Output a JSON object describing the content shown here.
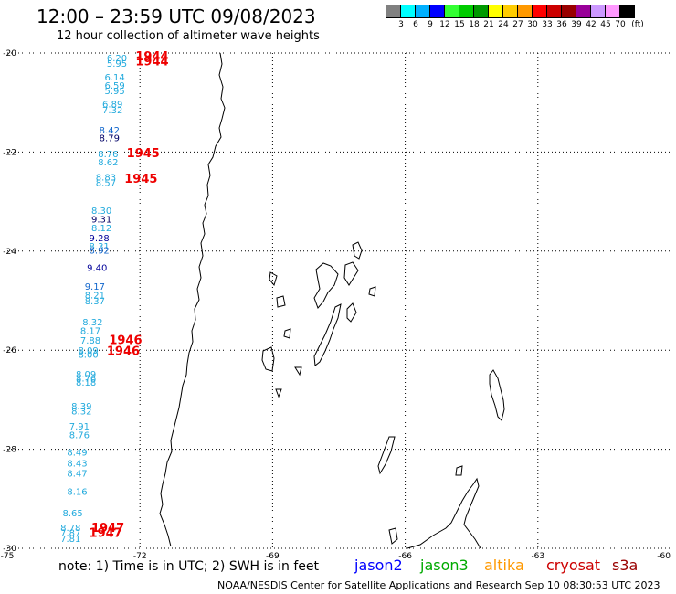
{
  "title": "12:00 – 23:59 UTC 09/08/2023",
  "subtitle": "12 hour collection of altimeter wave heights",
  "legend": {
    "colors": [
      "#808080",
      "#00ffff",
      "#00b0ff",
      "#0000ff",
      "#33ff33",
      "#00cc00",
      "#009900",
      "#ffff00",
      "#ffcc00",
      "#ff9900",
      "#ff0000",
      "#cc0000",
      "#990000",
      "#990099",
      "#cc99ff",
      "#ff99ff",
      "#000000"
    ],
    "labels": [
      "3",
      "6",
      "9",
      "12",
      "15",
      "18",
      "21",
      "24",
      "27",
      "30",
      "33",
      "36",
      "39",
      "42",
      "45",
      "70"
    ],
    "unit": "(ft)"
  },
  "axes": {
    "lat_labels": [
      "-20",
      "-22",
      "-24",
      "-26",
      "-28",
      "-30"
    ],
    "lon_labels": [
      "-75",
      "-72",
      "-69",
      "-66",
      "-63",
      "-60"
    ]
  },
  "observations": [
    {
      "v": "6.20",
      "c": "#22aadd",
      "lat": -20.17,
      "lon": -72.75
    },
    {
      "v": "5.95",
      "c": "#22aadd",
      "lat": -20.28,
      "lon": -72.75
    },
    {
      "v": "6.14",
      "c": "#22aadd",
      "lat": -20.55,
      "lon": -72.8
    },
    {
      "v": "6.59",
      "c": "#22aadd",
      "lat": -20.72,
      "lon": -72.8
    },
    {
      "v": "5.95",
      "c": "#22aadd",
      "lat": -20.83,
      "lon": -72.8
    },
    {
      "v": "6.89",
      "c": "#22aadd",
      "lat": -21.1,
      "lon": -72.85
    },
    {
      "v": "7.32",
      "c": "#22aadd",
      "lat": -21.22,
      "lon": -72.85
    },
    {
      "v": "8.42",
      "c": "#1166cc",
      "lat": -21.62,
      "lon": -72.92
    },
    {
      "v": "8.79",
      "c": "#000066",
      "lat": -21.78,
      "lon": -72.92
    },
    {
      "v": "8.76",
      "c": "#22aadd",
      "lat": -22.1,
      "lon": -72.95
    },
    {
      "v": "8.62",
      "c": "#22aadd",
      "lat": -22.27,
      "lon": -72.95
    },
    {
      "v": "8.83",
      "c": "#22aadd",
      "lat": -22.57,
      "lon": -73.0
    },
    {
      "v": "8.57",
      "c": "#22aadd",
      "lat": -22.68,
      "lon": -73.0
    },
    {
      "v": "8.30",
      "c": "#22aadd",
      "lat": -23.25,
      "lon": -73.1
    },
    {
      "v": "9.31",
      "c": "#000066",
      "lat": -23.42,
      "lon": -73.1
    },
    {
      "v": "8.12",
      "c": "#22aadd",
      "lat": -23.6,
      "lon": -73.1
    },
    {
      "v": "9.28",
      "c": "#000099",
      "lat": -23.8,
      "lon": -73.15
    },
    {
      "v": "8.31",
      "c": "#22aadd",
      "lat": -23.97,
      "lon": -73.15
    },
    {
      "v": "8.92",
      "c": "#1166cc",
      "lat": -24.05,
      "lon": -73.15
    },
    {
      "v": "9.40",
      "c": "#000099",
      "lat": -24.4,
      "lon": -73.2
    },
    {
      "v": "9.17",
      "c": "#1166cc",
      "lat": -24.78,
      "lon": -73.25
    },
    {
      "v": "8.21",
      "c": "#22aadd",
      "lat": -24.95,
      "lon": -73.25
    },
    {
      "v": "8.37",
      "c": "#22aadd",
      "lat": -25.07,
      "lon": -73.25
    },
    {
      "v": "8.32",
      "c": "#22aadd",
      "lat": -25.5,
      "lon": -73.3
    },
    {
      "v": "8.17",
      "c": "#22aadd",
      "lat": -25.67,
      "lon": -73.35
    },
    {
      "v": "7.88",
      "c": "#22aadd",
      "lat": -25.87,
      "lon": -73.35
    },
    {
      "v": "8.09",
      "c": "#22aadd",
      "lat": -26.07,
      "lon": -73.4
    },
    {
      "v": "8.00",
      "c": "#22aadd",
      "lat": -26.15,
      "lon": -73.4
    },
    {
      "v": "8.09",
      "c": "#22aadd",
      "lat": -26.55,
      "lon": -73.45
    },
    {
      "v": "8.76",
      "c": "#22aadd",
      "lat": -26.63,
      "lon": -73.45
    },
    {
      "v": "8.18",
      "c": "#22aadd",
      "lat": -26.72,
      "lon": -73.45
    },
    {
      "v": "8.39",
      "c": "#22aadd",
      "lat": -27.2,
      "lon": -73.55
    },
    {
      "v": "8.32",
      "c": "#22aadd",
      "lat": -27.3,
      "lon": -73.55
    },
    {
      "v": "7.91",
      "c": "#22aadd",
      "lat": -27.6,
      "lon": -73.6
    },
    {
      "v": "8.76",
      "c": "#22aadd",
      "lat": -27.78,
      "lon": -73.6
    },
    {
      "v": "8.49",
      "c": "#22aadd",
      "lat": -28.13,
      "lon": -73.65
    },
    {
      "v": "8.43",
      "c": "#22aadd",
      "lat": -28.35,
      "lon": -73.65
    },
    {
      "v": "8.47",
      "c": "#22aadd",
      "lat": -28.55,
      "lon": -73.65
    },
    {
      "v": "8.16",
      "c": "#22aadd",
      "lat": -28.92,
      "lon": -73.65
    },
    {
      "v": "8.65",
      "c": "#22aadd",
      "lat": -29.35,
      "lon": -73.75
    },
    {
      "v": "8.78",
      "c": "#22aadd",
      "lat": -29.65,
      "lon": -73.8
    },
    {
      "v": "7.87",
      "c": "#22aadd",
      "lat": -29.75,
      "lon": -73.8
    },
    {
      "v": "7.81",
      "c": "#22aadd",
      "lat": -29.87,
      "lon": -73.8
    }
  ],
  "times": [
    {
      "t": "1944",
      "lat": -20.15,
      "lon": -72.1
    },
    {
      "t": "1944",
      "lat": -20.25,
      "lon": -72.1
    },
    {
      "t": "1945",
      "lat": -22.1,
      "lon": -72.3
    },
    {
      "t": "1945",
      "lat": -22.62,
      "lon": -72.35
    },
    {
      "t": "1946",
      "lat": -25.88,
      "lon": -72.7
    },
    {
      "t": "1946",
      "lat": -26.1,
      "lon": -72.75
    },
    {
      "t": "1947",
      "lat": -29.67,
      "lon": -73.1
    },
    {
      "t": "1947",
      "lat": -29.77,
      "lon": -73.15
    }
  ],
  "note": "note: 1) Time is in UTC; 2) SWH is in feet",
  "satellites": [
    {
      "name": "jason2",
      "color": "#0000ff"
    },
    {
      "name": "jason3",
      "color": "#00aa00"
    },
    {
      "name": "altika",
      "color": "#ff9900"
    },
    {
      "name": "cryosat",
      "color": "#cc0000"
    },
    {
      "name": "s3a",
      "color": "#990000"
    }
  ],
  "footer": "NOAA/NESDIS Center for Satellite Applications and Research   Sep 10 08:30:53 UTC 2023"
}
